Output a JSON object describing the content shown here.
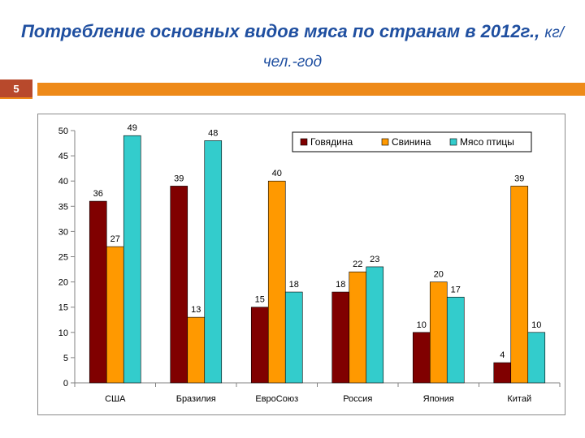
{
  "slide": {
    "title_main": "Потребление основных видов мяса по странам в 2012г.,",
    "title_unit": "кг/чел.-год",
    "number": "5"
  },
  "colors": {
    "title": "#1f4fa0",
    "accent_bar": "#ee8a19",
    "slide_number_bg": "#b8492c"
  },
  "chart_data": {
    "type": "bar",
    "categories": [
      "США",
      "Бразилия",
      "ЕвроСоюз",
      "Россия",
      "Япония",
      "Китай"
    ],
    "series": [
      {
        "name": "Говядина",
        "color": "#800000",
        "values": [
          36,
          39,
          15,
          18,
          10,
          4
        ]
      },
      {
        "name": "Свинина",
        "color": "#ff9900",
        "values": [
          27,
          13,
          40,
          22,
          20,
          39
        ]
      },
      {
        "name": "Мясо птицы",
        "color": "#33cccc",
        "values": [
          49,
          48,
          18,
          23,
          17,
          10
        ]
      }
    ],
    "ylim": [
      0,
      50
    ],
    "yticks": [
      0,
      5,
      10,
      15,
      20,
      25,
      30,
      35,
      40,
      45,
      50
    ],
    "legend_position": "top-right",
    "grid": false
  }
}
